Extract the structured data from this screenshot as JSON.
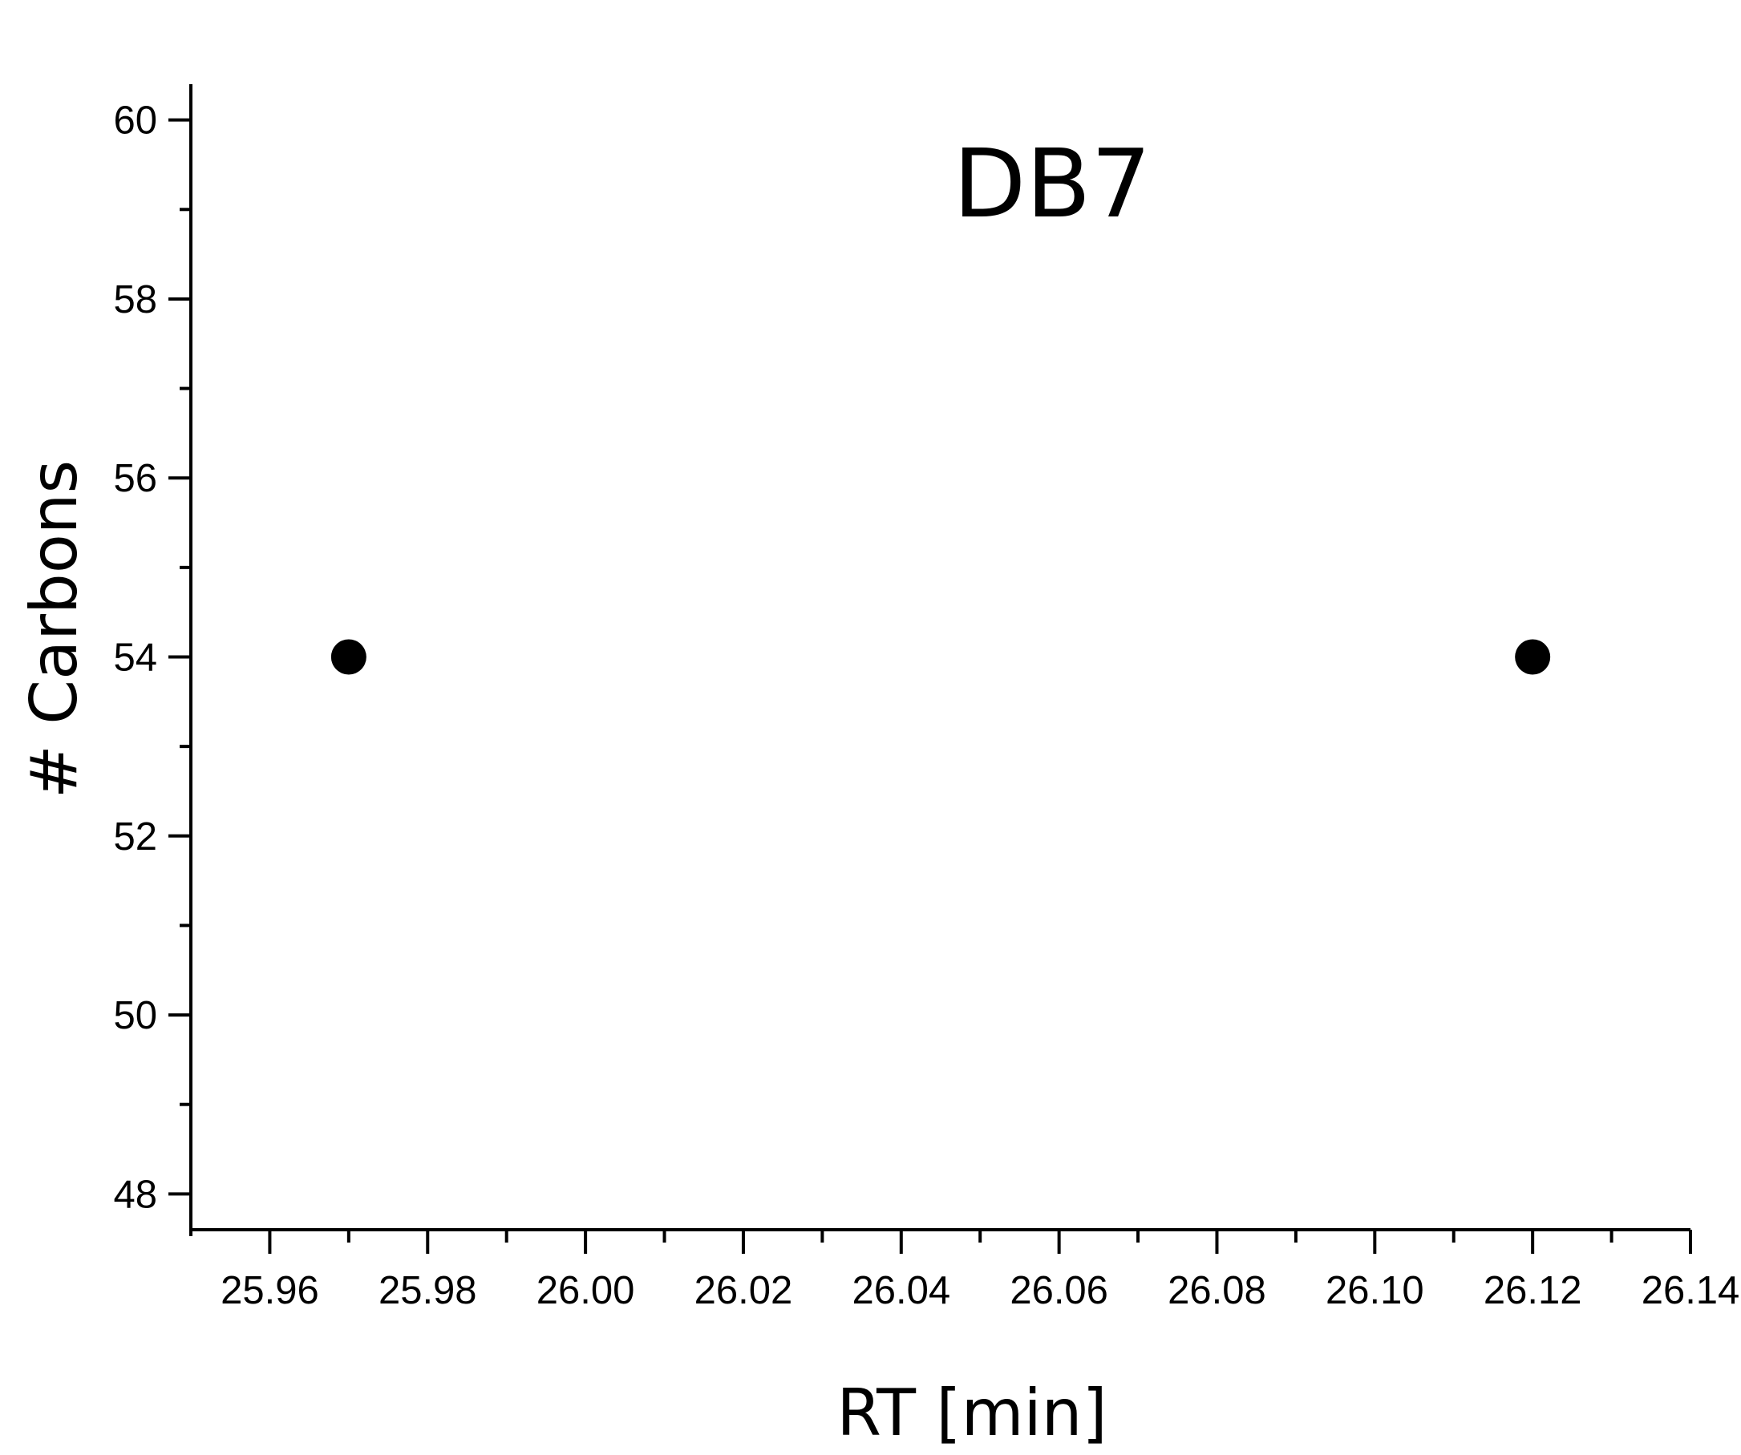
{
  "chart_data": {
    "type": "scatter",
    "title": "DB7",
    "xlabel": "RT [min]",
    "ylabel": "# Carbons",
    "xlim": [
      25.95,
      26.14
    ],
    "ylim": [
      47.6,
      60.4
    ],
    "x_ticks": [
      25.96,
      25.98,
      26.0,
      26.02,
      26.04,
      26.06,
      26.08,
      26.1,
      26.12,
      26.14
    ],
    "x_tick_labels": [
      "25.96",
      "25.98",
      "26.00",
      "26.02",
      "26.04",
      "26.06",
      "26.08",
      "26.10",
      "26.12",
      "26.14"
    ],
    "y_ticks": [
      48,
      50,
      52,
      54,
      56,
      58,
      60
    ],
    "y_tick_labels": [
      "48",
      "50",
      "52",
      "54",
      "56",
      "58",
      "60"
    ],
    "grid": false,
    "series": [
      {
        "points": [
          {
            "x": 25.97,
            "y": 54
          },
          {
            "x": 26.12,
            "y": 54
          }
        ],
        "color": "#000000"
      }
    ]
  }
}
